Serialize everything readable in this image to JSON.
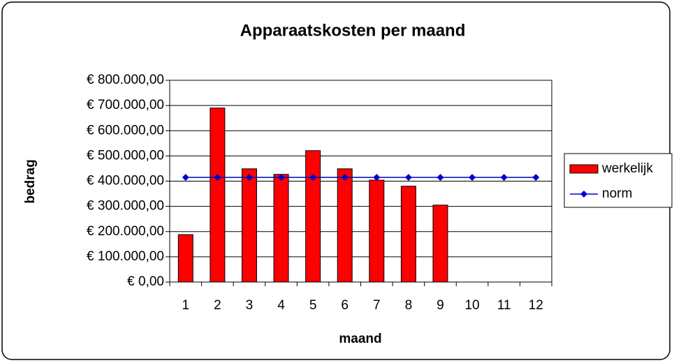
{
  "chart_data": {
    "type": "bar-line",
    "title": "Apparaatskosten per maand",
    "x_label": "maand",
    "y_label": "bedrag",
    "categories": [
      "1",
      "2",
      "3",
      "4",
      "5",
      "6",
      "7",
      "8",
      "9",
      "10",
      "11",
      "12"
    ],
    "series": [
      {
        "name": "werkelijk",
        "type": "bar",
        "color": "#ff0000",
        "values": [
          188000,
          690000,
          449000,
          427000,
          521000,
          449000,
          404000,
          380000,
          305000,
          null,
          null,
          null
        ]
      },
      {
        "name": "norm",
        "type": "line",
        "color": "#0000cc",
        "values": [
          415000,
          415000,
          415000,
          415000,
          415000,
          415000,
          415000,
          415000,
          415000,
          415000,
          415000,
          415000
        ]
      }
    ],
    "ylim": [
      0,
      800000
    ],
    "yticks": [
      {
        "value": 0,
        "label": "€ 0,00"
      },
      {
        "value": 100000,
        "label": "€ 100.000,00"
      },
      {
        "value": 200000,
        "label": "€ 200.000,00"
      },
      {
        "value": 300000,
        "label": "€ 300.000,00"
      },
      {
        "value": 400000,
        "label": "€ 400.000,00"
      },
      {
        "value": 500000,
        "label": "€ 500.000,00"
      },
      {
        "value": 600000,
        "label": "€ 600.000,00"
      },
      {
        "value": 700000,
        "label": "€ 700.000,00"
      },
      {
        "value": 800000,
        "label": "€ 800.000,00"
      }
    ],
    "grid": true,
    "legend": "right"
  }
}
